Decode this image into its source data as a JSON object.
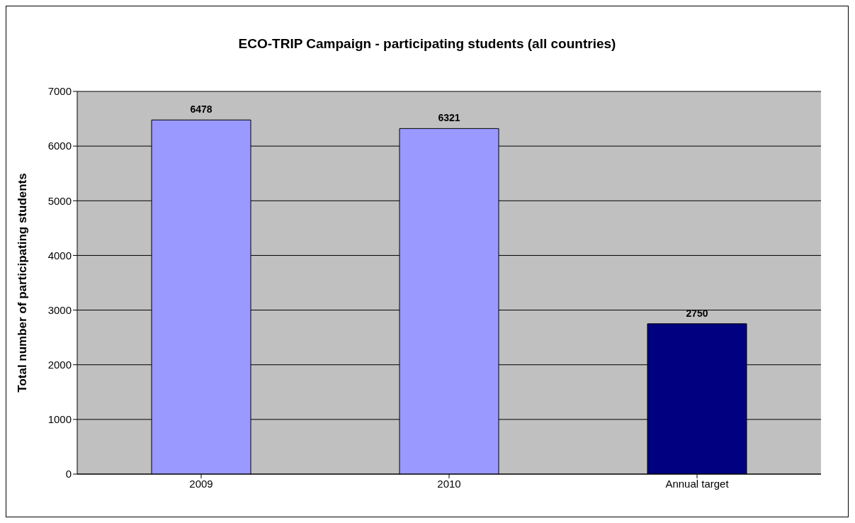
{
  "chart_data": {
    "type": "bar",
    "title": "ECO-TRIP Campaign - participating students (all countries)",
    "ylabel": "Total number of participating students",
    "categories": [
      "2009",
      "2010",
      "Annual target"
    ],
    "values": [
      6478,
      6321,
      2750
    ],
    "colors": [
      "#9999ff",
      "#9999ff",
      "#000080"
    ],
    "ylim": [
      0,
      7000
    ],
    "yticks": [
      0,
      1000,
      2000,
      3000,
      4000,
      5000,
      6000,
      7000
    ],
    "grid": "y",
    "data_labels": true
  }
}
